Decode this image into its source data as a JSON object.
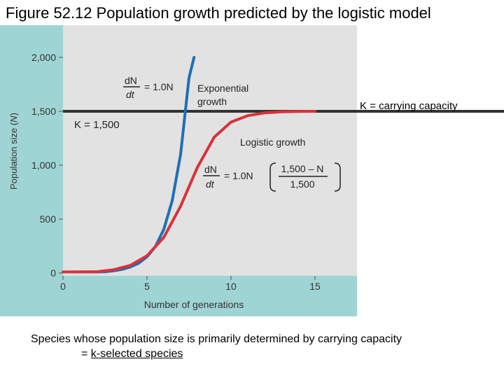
{
  "title": "Figure 52.12 Population growth predicted by the logistic model",
  "chart_data": {
    "type": "line",
    "xlabel": "Number of generations",
    "ylabel_main": "Population size (",
    "ylabel_var": "N",
    "ylabel_end": ")",
    "xlim": [
      0,
      17
    ],
    "ylim": [
      0,
      2000
    ],
    "x_ticks": [
      0,
      5,
      10,
      15
    ],
    "x_tick_labels": [
      "0",
      "5",
      "10",
      "15"
    ],
    "y_ticks": [
      0,
      500,
      1000,
      1500,
      2000
    ],
    "y_tick_labels": [
      "0",
      "500",
      "1,000",
      "1,500",
      "2,000"
    ],
    "carrying_capacity": 1500,
    "series": [
      {
        "color": "#1f6fb4",
        "x": [
          0,
          2,
          2.5,
          3,
          3.5,
          4,
          4.5,
          5,
          5.5,
          6,
          6.5,
          7,
          7.5,
          7.8
        ],
        "y": [
          10,
          10,
          12,
          20,
          33,
          55,
          90,
          150,
          245,
          405,
          670,
          1100,
          1810,
          2000
        ]
      },
      {
        "color": "#d8323c",
        "x": [
          0,
          2,
          3,
          4,
          5,
          6,
          7,
          8,
          9,
          10,
          11,
          12,
          13,
          14,
          15
        ],
        "y": [
          10,
          12,
          30,
          70,
          160,
          330,
          620,
          980,
          1260,
          1400,
          1460,
          1485,
          1495,
          1498,
          1500
        ]
      }
    ],
    "annotations": {
      "exp_dn": "dN",
      "exp_dt": "dt",
      "exp_rhs": "= 1.0N",
      "exponential": [
        "Exponential",
        "growth"
      ],
      "k_label": "K = 1,500",
      "logistic": "Logistic growth",
      "log_dn": "dN",
      "log_dt": "dt",
      "log_rhs": "= 1.0N",
      "log_num": "1,500 – N",
      "log_den": "1,500",
      "k_capacity": "K = carrying capacity"
    }
  },
  "caption": {
    "line1": "Species whose population size is primarily determined by carrying capacity",
    "line2_prefix": "= ",
    "line2_link": "k-selected species"
  }
}
